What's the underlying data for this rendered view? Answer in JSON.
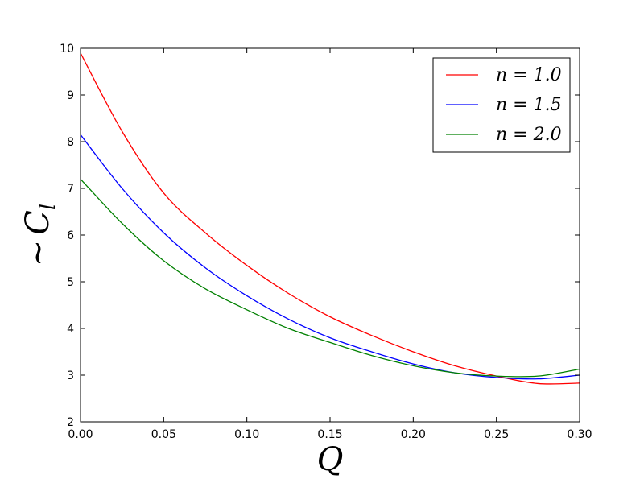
{
  "chart_data": {
    "type": "line",
    "title": "",
    "xlabel": "Q",
    "ylabel_prefix": "~",
    "ylabel": "C",
    "ylabel_sub": "l",
    "xlim": [
      0.0,
      0.3
    ],
    "ylim": [
      2,
      10
    ],
    "xticks": [
      0.0,
      0.05,
      0.1,
      0.15,
      0.2,
      0.25,
      0.3
    ],
    "xtick_labels": [
      "0.00",
      "0.05",
      "0.10",
      "0.15",
      "0.20",
      "0.25",
      "0.30"
    ],
    "yticks": [
      2,
      3,
      4,
      5,
      6,
      7,
      8,
      9,
      10
    ],
    "ytick_labels": [
      "2",
      "3",
      "4",
      "5",
      "6",
      "7",
      "8",
      "9",
      "10"
    ],
    "grid": false,
    "legend_position": "top-right",
    "x": [
      0.0,
      0.025,
      0.05,
      0.075,
      0.1,
      0.125,
      0.15,
      0.175,
      0.2,
      0.225,
      0.25,
      0.275,
      0.3
    ],
    "series": [
      {
        "name": "n = 1.0",
        "color": "#ff0000",
        "values": [
          9.9,
          8.22,
          6.9,
          6.05,
          5.35,
          4.75,
          4.25,
          3.85,
          3.5,
          3.2,
          2.98,
          2.82,
          2.83
        ]
      },
      {
        "name": "n = 1.5",
        "color": "#0000ff",
        "values": [
          8.15,
          7.0,
          6.05,
          5.3,
          4.7,
          4.2,
          3.8,
          3.5,
          3.24,
          3.05,
          2.95,
          2.92,
          3.0
        ]
      },
      {
        "name": "n = 2.0",
        "color": "#008000",
        "values": [
          7.2,
          6.25,
          5.45,
          4.85,
          4.4,
          4.0,
          3.7,
          3.42,
          3.2,
          3.05,
          2.98,
          2.98,
          3.13
        ]
      }
    ]
  }
}
